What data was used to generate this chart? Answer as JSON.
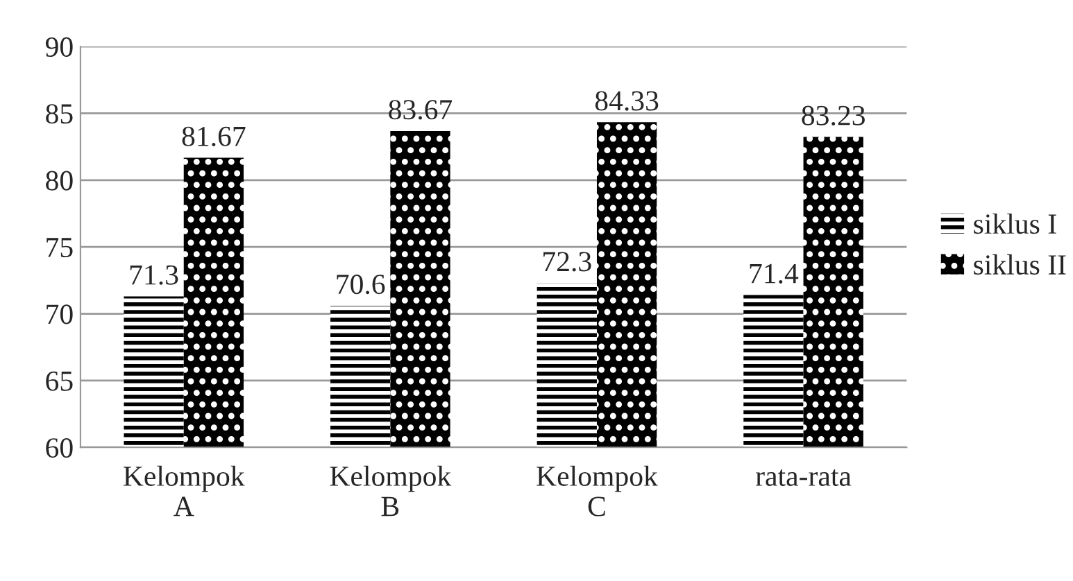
{
  "chart_data": {
    "type": "bar",
    "categories": [
      "Kelompok A",
      "Kelompok B",
      "Kelompok C",
      "rata-rata"
    ],
    "series": [
      {
        "name": "siklus I",
        "color": "#000000",
        "values": [
          71.3,
          70.6,
          72.3,
          71.4
        ]
      },
      {
        "name": "siklus II",
        "color": "#000000",
        "values": [
          81.67,
          83.67,
          84.33,
          83.23
        ]
      }
    ],
    "ylim": [
      60,
      90
    ],
    "yticks": [
      60,
      65,
      70,
      75,
      80,
      85,
      90
    ],
    "grid": "y",
    "legend": "right",
    "data_labels": true
  }
}
